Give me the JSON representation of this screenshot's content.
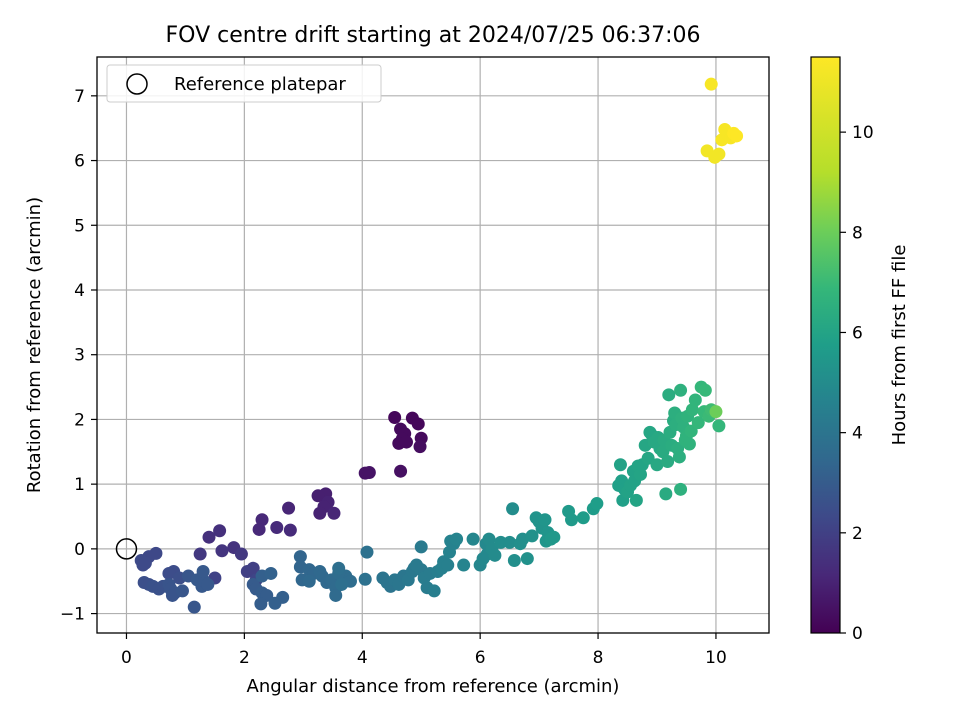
{
  "chart_data": {
    "type": "scatter",
    "title": "FOV centre drift starting at 2024/07/25 06:37:06",
    "xlabel": "Angular distance from reference (arcmin)",
    "ylabel": "Rotation from reference (arcmin)",
    "xlim": [
      -0.5,
      10.9
    ],
    "ylim": [
      -1.3,
      7.6
    ],
    "xticks": [
      0,
      2,
      4,
      6,
      8,
      10
    ],
    "yticks": [
      -1,
      0,
      1,
      2,
      3,
      4,
      5,
      6,
      7
    ],
    "grid": true,
    "legend": {
      "position": "upper-left",
      "entries": [
        "Reference platepar"
      ]
    },
    "reference_point": {
      "name": "Reference platepar",
      "x": 0.0,
      "y": 0.0
    },
    "colorbar": {
      "label": "Hours from first FF file",
      "min": 0,
      "max": 11.5,
      "ticks": [
        0,
        2,
        4,
        6,
        8,
        10
      ],
      "colormap": "viridis"
    },
    "series": [
      {
        "points": [
          [
            4.55,
            2.03,
            0.2
          ],
          [
            4.85,
            2.02,
            0.2
          ],
          [
            4.95,
            1.93,
            0.2
          ],
          [
            4.65,
            1.85,
            0.3
          ],
          [
            4.72,
            1.78,
            0.3
          ],
          [
            4.68,
            1.7,
            0.3
          ],
          [
            5.0,
            1.71,
            0.3
          ],
          [
            4.62,
            1.63,
            0.3
          ],
          [
            4.75,
            1.65,
            0.3
          ],
          [
            4.98,
            1.58,
            0.4
          ],
          [
            4.65,
            1.2,
            0.5
          ],
          [
            4.05,
            1.17,
            0.6
          ],
          [
            4.12,
            1.18,
            0.6
          ],
          [
            3.38,
            0.85,
            1.0
          ],
          [
            3.25,
            0.82,
            1.0
          ],
          [
            3.42,
            0.72,
            1.1
          ],
          [
            3.35,
            0.65,
            1.1
          ],
          [
            3.28,
            0.55,
            1.1
          ],
          [
            3.52,
            0.55,
            1.2
          ],
          [
            2.75,
            0.63,
            1.2
          ],
          [
            2.3,
            0.45,
            1.3
          ],
          [
            2.25,
            0.3,
            1.3
          ],
          [
            2.55,
            0.33,
            1.4
          ],
          [
            2.78,
            0.29,
            1.4
          ],
          [
            1.58,
            0.28,
            1.6
          ],
          [
            1.4,
            0.18,
            1.6
          ],
          [
            1.82,
            0.02,
            1.7
          ],
          [
            1.62,
            -0.03,
            1.8
          ],
          [
            1.95,
            -0.08,
            1.9
          ],
          [
            1.25,
            -0.08,
            1.9
          ],
          [
            2.05,
            -0.35,
            2.2
          ],
          [
            2.15,
            -0.3,
            2.2
          ],
          [
            1.5,
            -0.45,
            2.3
          ],
          [
            2.2,
            -0.48,
            2.4
          ],
          [
            0.5,
            -0.07,
            2.5
          ],
          [
            0.38,
            -0.12,
            2.5
          ],
          [
            0.25,
            -0.18,
            2.6
          ],
          [
            0.32,
            -0.22,
            2.6
          ],
          [
            0.28,
            -0.25,
            2.6
          ],
          [
            0.8,
            -0.35,
            2.7
          ],
          [
            0.72,
            -0.38,
            2.7
          ],
          [
            0.9,
            -0.45,
            2.8
          ],
          [
            0.3,
            -0.52,
            2.8
          ],
          [
            0.38,
            -0.55,
            2.8
          ],
          [
            0.45,
            -0.58,
            2.9
          ],
          [
            0.55,
            -0.62,
            2.9
          ],
          [
            0.62,
            -0.58,
            2.9
          ],
          [
            0.72,
            -0.55,
            3.0
          ],
          [
            0.75,
            -0.62,
            3.0
          ],
          [
            0.82,
            -0.68,
            3.0
          ],
          [
            0.78,
            -0.72,
            3.0
          ],
          [
            0.95,
            -0.65,
            3.1
          ],
          [
            1.05,
            -0.42,
            3.1
          ],
          [
            1.15,
            -0.9,
            3.1
          ],
          [
            1.2,
            -0.48,
            3.2
          ],
          [
            1.28,
            -0.58,
            3.2
          ],
          [
            1.32,
            -0.5,
            3.2
          ],
          [
            1.38,
            -0.55,
            3.2
          ],
          [
            1.3,
            -0.35,
            3.2
          ],
          [
            2.15,
            -0.55,
            3.3
          ],
          [
            2.2,
            -0.62,
            3.3
          ],
          [
            2.3,
            -0.68,
            3.4
          ],
          [
            2.38,
            -0.72,
            3.4
          ],
          [
            2.28,
            -0.85,
            3.4
          ],
          [
            2.52,
            -0.84,
            3.5
          ],
          [
            2.65,
            -0.75,
            3.5
          ],
          [
            2.3,
            -0.42,
            3.5
          ],
          [
            2.45,
            -0.38,
            3.6
          ],
          [
            2.95,
            -0.12,
            3.7
          ],
          [
            2.95,
            -0.28,
            3.7
          ],
          [
            3.1,
            -0.32,
            3.8
          ],
          [
            3.18,
            -0.38,
            3.8
          ],
          [
            2.98,
            -0.48,
            3.8
          ],
          [
            3.1,
            -0.5,
            3.9
          ],
          [
            3.28,
            -0.35,
            3.9
          ],
          [
            3.32,
            -0.42,
            3.9
          ],
          [
            3.4,
            -0.52,
            3.9
          ],
          [
            3.48,
            -0.48,
            4.0
          ],
          [
            3.55,
            -0.6,
            4.0
          ],
          [
            3.55,
            -0.72,
            4.0
          ],
          [
            3.62,
            -0.4,
            4.0
          ],
          [
            3.68,
            -0.48,
            4.1
          ],
          [
            3.72,
            -0.42,
            4.1
          ],
          [
            3.8,
            -0.5,
            4.1
          ],
          [
            3.6,
            -0.38,
            4.1
          ],
          [
            3.65,
            -0.55,
            4.2
          ],
          [
            3.6,
            -0.3,
            4.2
          ],
          [
            4.05,
            -0.47,
            4.3
          ],
          [
            4.08,
            -0.05,
            4.3
          ],
          [
            4.35,
            -0.45,
            4.4
          ],
          [
            4.42,
            -0.52,
            4.4
          ],
          [
            4.48,
            -0.58,
            4.4
          ],
          [
            4.55,
            -0.48,
            4.5
          ],
          [
            4.62,
            -0.55,
            4.5
          ],
          [
            4.7,
            -0.42,
            4.5
          ],
          [
            4.78,
            -0.48,
            4.6
          ],
          [
            4.85,
            -0.35,
            4.6
          ],
          [
            4.88,
            -0.3,
            4.6
          ],
          [
            4.92,
            -0.25,
            4.7
          ],
          [
            5.0,
            -0.32,
            4.7
          ],
          [
            5.0,
            0.03,
            4.7
          ],
          [
            5.05,
            -0.45,
            4.8
          ],
          [
            5.1,
            -0.6,
            4.8
          ],
          [
            5.15,
            -0.38,
            4.8
          ],
          [
            5.22,
            -0.65,
            4.9
          ],
          [
            5.28,
            -0.35,
            4.9
          ],
          [
            5.35,
            -0.3,
            5.0
          ],
          [
            5.38,
            -0.2,
            5.0
          ],
          [
            5.45,
            -0.25,
            5.0
          ],
          [
            5.48,
            -0.05,
            5.1
          ],
          [
            5.5,
            0.12,
            5.1
          ],
          [
            5.55,
            0.08,
            5.1
          ],
          [
            5.6,
            0.15,
            5.2
          ],
          [
            5.72,
            -0.25,
            5.2
          ],
          [
            5.88,
            0.15,
            5.3
          ],
          [
            6.0,
            -0.25,
            5.3
          ],
          [
            6.05,
            -0.15,
            5.4
          ],
          [
            6.1,
            0.08,
            5.4
          ],
          [
            6.12,
            -0.08,
            5.4
          ],
          [
            6.15,
            0.15,
            5.5
          ],
          [
            6.2,
            0.0,
            5.5
          ],
          [
            6.25,
            -0.1,
            5.5
          ],
          [
            6.35,
            0.1,
            5.6
          ],
          [
            6.5,
            0.1,
            5.6
          ],
          [
            6.55,
            0.62,
            5.6
          ],
          [
            6.58,
            -0.18,
            5.7
          ],
          [
            6.68,
            0.08,
            5.7
          ],
          [
            6.72,
            0.15,
            5.7
          ],
          [
            6.8,
            -0.15,
            5.8
          ],
          [
            6.88,
            0.2,
            5.8
          ],
          [
            6.95,
            0.48,
            5.9
          ],
          [
            7.0,
            0.42,
            5.9
          ],
          [
            7.05,
            0.32,
            5.9
          ],
          [
            7.1,
            0.45,
            6.0
          ],
          [
            7.15,
            0.25,
            6.0
          ],
          [
            7.12,
            0.12,
            6.0
          ],
          [
            7.2,
            0.15,
            6.1
          ],
          [
            7.25,
            0.18,
            6.1
          ],
          [
            7.5,
            0.58,
            6.2
          ],
          [
            7.55,
            0.45,
            6.2
          ],
          [
            7.75,
            0.48,
            6.3
          ],
          [
            7.92,
            0.62,
            6.3
          ],
          [
            7.98,
            0.7,
            6.4
          ],
          [
            8.35,
            0.98,
            6.5
          ],
          [
            8.4,
            1.05,
            6.5
          ],
          [
            8.45,
            0.92,
            6.5
          ],
          [
            8.42,
            0.75,
            6.5
          ],
          [
            8.5,
            0.88,
            6.6
          ],
          [
            8.38,
            1.3,
            6.6
          ],
          [
            8.55,
            0.98,
            6.6
          ],
          [
            8.6,
            1.2,
            6.6
          ],
          [
            8.62,
            1.05,
            6.6
          ],
          [
            8.65,
            0.75,
            6.7
          ],
          [
            8.68,
            1.28,
            6.7
          ],
          [
            8.72,
            1.15,
            6.7
          ],
          [
            8.75,
            1.3,
            6.7
          ],
          [
            8.8,
            1.6,
            6.8
          ],
          [
            8.85,
            1.4,
            6.8
          ],
          [
            8.88,
            1.8,
            6.8
          ],
          [
            8.92,
            1.75,
            6.8
          ],
          [
            8.95,
            1.65,
            6.9
          ],
          [
            9.0,
            1.3,
            6.9
          ],
          [
            9.02,
            1.72,
            6.9
          ],
          [
            9.05,
            1.55,
            6.9
          ],
          [
            9.1,
            1.5,
            7.0
          ],
          [
            9.12,
            1.68,
            7.0
          ],
          [
            9.15,
            0.85,
            7.0
          ],
          [
            9.18,
            1.35,
            7.0
          ],
          [
            9.2,
            2.38,
            7.1
          ],
          [
            9.22,
            1.8,
            7.1
          ],
          [
            9.25,
            1.6,
            7.1
          ],
          [
            9.28,
            1.98,
            7.1
          ],
          [
            9.3,
            2.1,
            7.2
          ],
          [
            9.32,
            1.92,
            7.2
          ],
          [
            9.35,
            1.55,
            7.2
          ],
          [
            9.38,
            1.42,
            7.2
          ],
          [
            9.4,
            0.92,
            7.3
          ],
          [
            9.4,
            2.45,
            7.3
          ],
          [
            9.42,
            2.02,
            7.3
          ],
          [
            9.45,
            1.88,
            7.3
          ],
          [
            9.48,
            1.68,
            7.4
          ],
          [
            9.5,
            1.75,
            7.4
          ],
          [
            9.52,
            2.05,
            7.4
          ],
          [
            9.55,
            1.62,
            7.4
          ],
          [
            9.58,
            1.82,
            7.5
          ],
          [
            9.6,
            2.15,
            7.5
          ],
          [
            9.65,
            2.3,
            7.5
          ],
          [
            9.7,
            1.95,
            7.6
          ],
          [
            9.75,
            2.5,
            7.6
          ],
          [
            9.8,
            2.12,
            7.7
          ],
          [
            9.82,
            2.45,
            7.7
          ],
          [
            9.88,
            2.05,
            7.8
          ],
          [
            9.92,
            2.15,
            7.9
          ],
          [
            10.0,
            2.12,
            8.9
          ],
          [
            10.05,
            1.9,
            7.6
          ],
          [
            9.92,
            7.18,
            11.4
          ],
          [
            9.85,
            6.15,
            11.3
          ],
          [
            9.98,
            6.05,
            11.3
          ],
          [
            10.05,
            6.1,
            11.3
          ],
          [
            10.1,
            6.32,
            11.4
          ],
          [
            10.15,
            6.48,
            11.4
          ],
          [
            10.2,
            6.4,
            11.4
          ],
          [
            10.25,
            6.35,
            11.4
          ],
          [
            10.3,
            6.42,
            11.5
          ],
          [
            10.35,
            6.38,
            11.5
          ]
        ]
      }
    ]
  }
}
